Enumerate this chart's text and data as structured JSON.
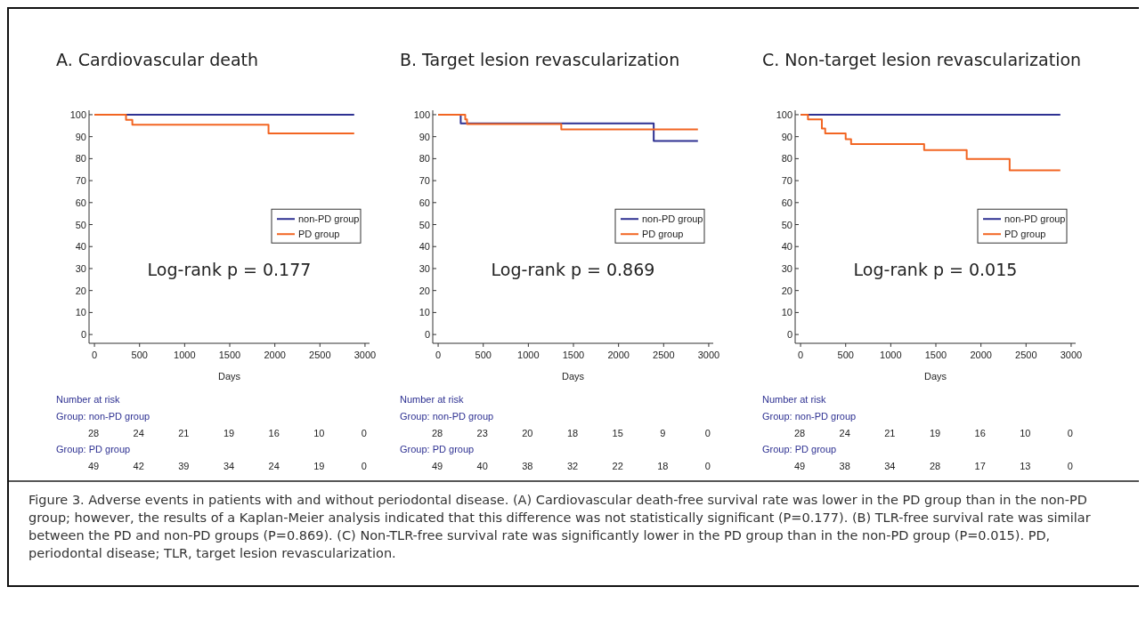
{
  "chart_data": [
    {
      "type": "step",
      "title": "A. Cardiovascular death",
      "xlabel": "Days",
      "xlim": [
        -60,
        3050
      ],
      "ylim": [
        -4,
        102
      ],
      "xticks": [
        0,
        500,
        1000,
        1500,
        2000,
        2500,
        3000
      ],
      "yticks": [
        0,
        10,
        20,
        30,
        40,
        50,
        60,
        70,
        80,
        90,
        100
      ],
      "grid": false,
      "legend": "right",
      "series": [
        {
          "name": "non-PD group",
          "color": "#2e3192",
          "x": [
            0,
            2880
          ],
          "values": [
            100,
            100
          ]
        },
        {
          "name": "PD group",
          "color": "#f26522",
          "x": [
            0,
            350,
            420,
            1930,
            2880
          ],
          "values": [
            100,
            97.7,
            95.4,
            91.5,
            91.5
          ]
        }
      ],
      "annotations": [
        "Log-rank p = 0.177",
        "Number at risk",
        "Group: non-PD group",
        "28 24 21 19 16 10 0",
        "Group: PD group",
        "49 42 39 34 24 19 0"
      ]
    },
    {
      "type": "step",
      "title": "B. Target lesion revascularization",
      "xlabel": "Days",
      "xlim": [
        -60,
        3050
      ],
      "ylim": [
        -4,
        102
      ],
      "xticks": [
        0,
        500,
        1000,
        1500,
        2000,
        2500,
        3000
      ],
      "yticks": [
        0,
        10,
        20,
        30,
        40,
        50,
        60,
        70,
        80,
        90,
        100
      ],
      "grid": false,
      "legend": "right",
      "series": [
        {
          "name": "non-PD group",
          "color": "#2e3192",
          "x": [
            0,
            250,
            2390,
            2880
          ],
          "values": [
            100,
            96,
            88,
            88
          ]
        },
        {
          "name": "PD group",
          "color": "#f26522",
          "x": [
            0,
            300,
            320,
            1365,
            2880
          ],
          "values": [
            100,
            97.9,
            95.7,
            93.3,
            93.3
          ]
        }
      ],
      "annotations": [
        "Log-rank p = 0.869",
        "Number at risk",
        "Group: non-PD group",
        "28 23 20 18 15 9 0",
        "Group: PD group",
        "49 40 38 32 22 18 0"
      ]
    },
    {
      "type": "step",
      "title": "C. Non-target lesion revascularization",
      "xlabel": "Days",
      "xlim": [
        -60,
        3050
      ],
      "ylim": [
        -4,
        102
      ],
      "xticks": [
        0,
        500,
        1000,
        1500,
        2000,
        2500,
        3000
      ],
      "yticks": [
        0,
        10,
        20,
        30,
        40,
        50,
        60,
        70,
        80,
        90,
        100
      ],
      "grid": false,
      "legend": "right",
      "series": [
        {
          "name": "non-PD group",
          "color": "#2e3192",
          "x": [
            0,
            2880
          ],
          "values": [
            100,
            100
          ]
        },
        {
          "name": "PD group",
          "color": "#f26522",
          "x": [
            0,
            82,
            236,
            273,
            500,
            560,
            1370,
            1842,
            2318,
            2880
          ],
          "values": [
            100,
            97.9,
            93.7,
            91.5,
            88.9,
            86.6,
            83.9,
            79.9,
            74.7,
            74.7
          ]
        }
      ],
      "annotations": [
        "Log-rank p = 0.015",
        "Number at risk",
        "Group: non-PD group",
        "28 24 21 19 16 10 0",
        "Group: PD group",
        "49 38 34 28 17 13 0",
        "Figure 3. Adverse events in patients with and without periodontal disease. (A) Cardiovascular death-free survival rate was lower in the PD group than in the non-PD group; however, the results of a Kaplan-Meier analysis indicated that this difference was not statistically significant (P=0.177). (B) TLR-free survival rate was similar between the PD and non-PD groups (P=0.869). (C) Non-TLR-free survival rate was significantly lower in the PD group than in the non-PD group (P=0.015). PD, periodontal disease; TLR, target lesion revascularization."
      ]
    }
  ]
}
